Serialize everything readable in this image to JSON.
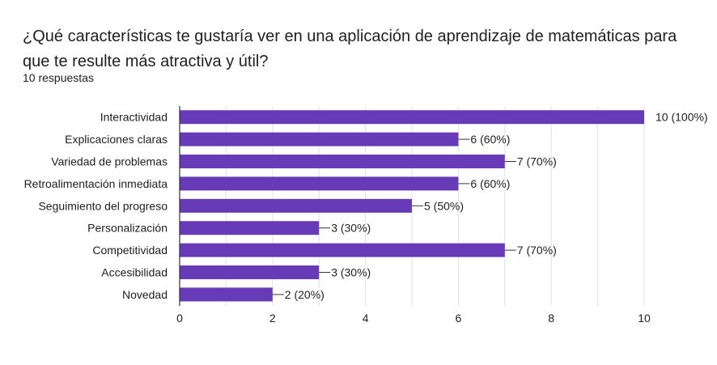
{
  "question": "¿Qué características te gustaría ver en una aplicación de aprendizaje de matemáticas para que te resulte más atractiva y útil?",
  "responses_count": "10 respuestas",
  "colors": {
    "bar": "#673ab7",
    "grid": "#e0e0e0",
    "axis": "#333333"
  },
  "chart_data": {
    "type": "bar",
    "orientation": "horizontal",
    "categories": [
      "Interactividad",
      "Explicaciones claras",
      "Variedad de problemas",
      "Retroalimentación inmediata",
      "Seguimiento del progreso",
      "Personalización",
      "Competitividad",
      "Accesibilidad",
      "Novedad"
    ],
    "values": [
      10,
      6,
      7,
      6,
      5,
      3,
      7,
      3,
      2
    ],
    "data_labels": [
      "10 (100%)",
      "6 (60%)",
      "7 (70%)",
      "6 (60%)",
      "5 (50%)",
      "3 (30%)",
      "7 (70%)",
      "3 (30%)",
      "2 (20%)"
    ],
    "xlim": [
      0,
      10
    ],
    "xticks": [
      "0",
      "2",
      "4",
      "6",
      "8",
      "10"
    ],
    "grid": true,
    "legend": "none"
  }
}
